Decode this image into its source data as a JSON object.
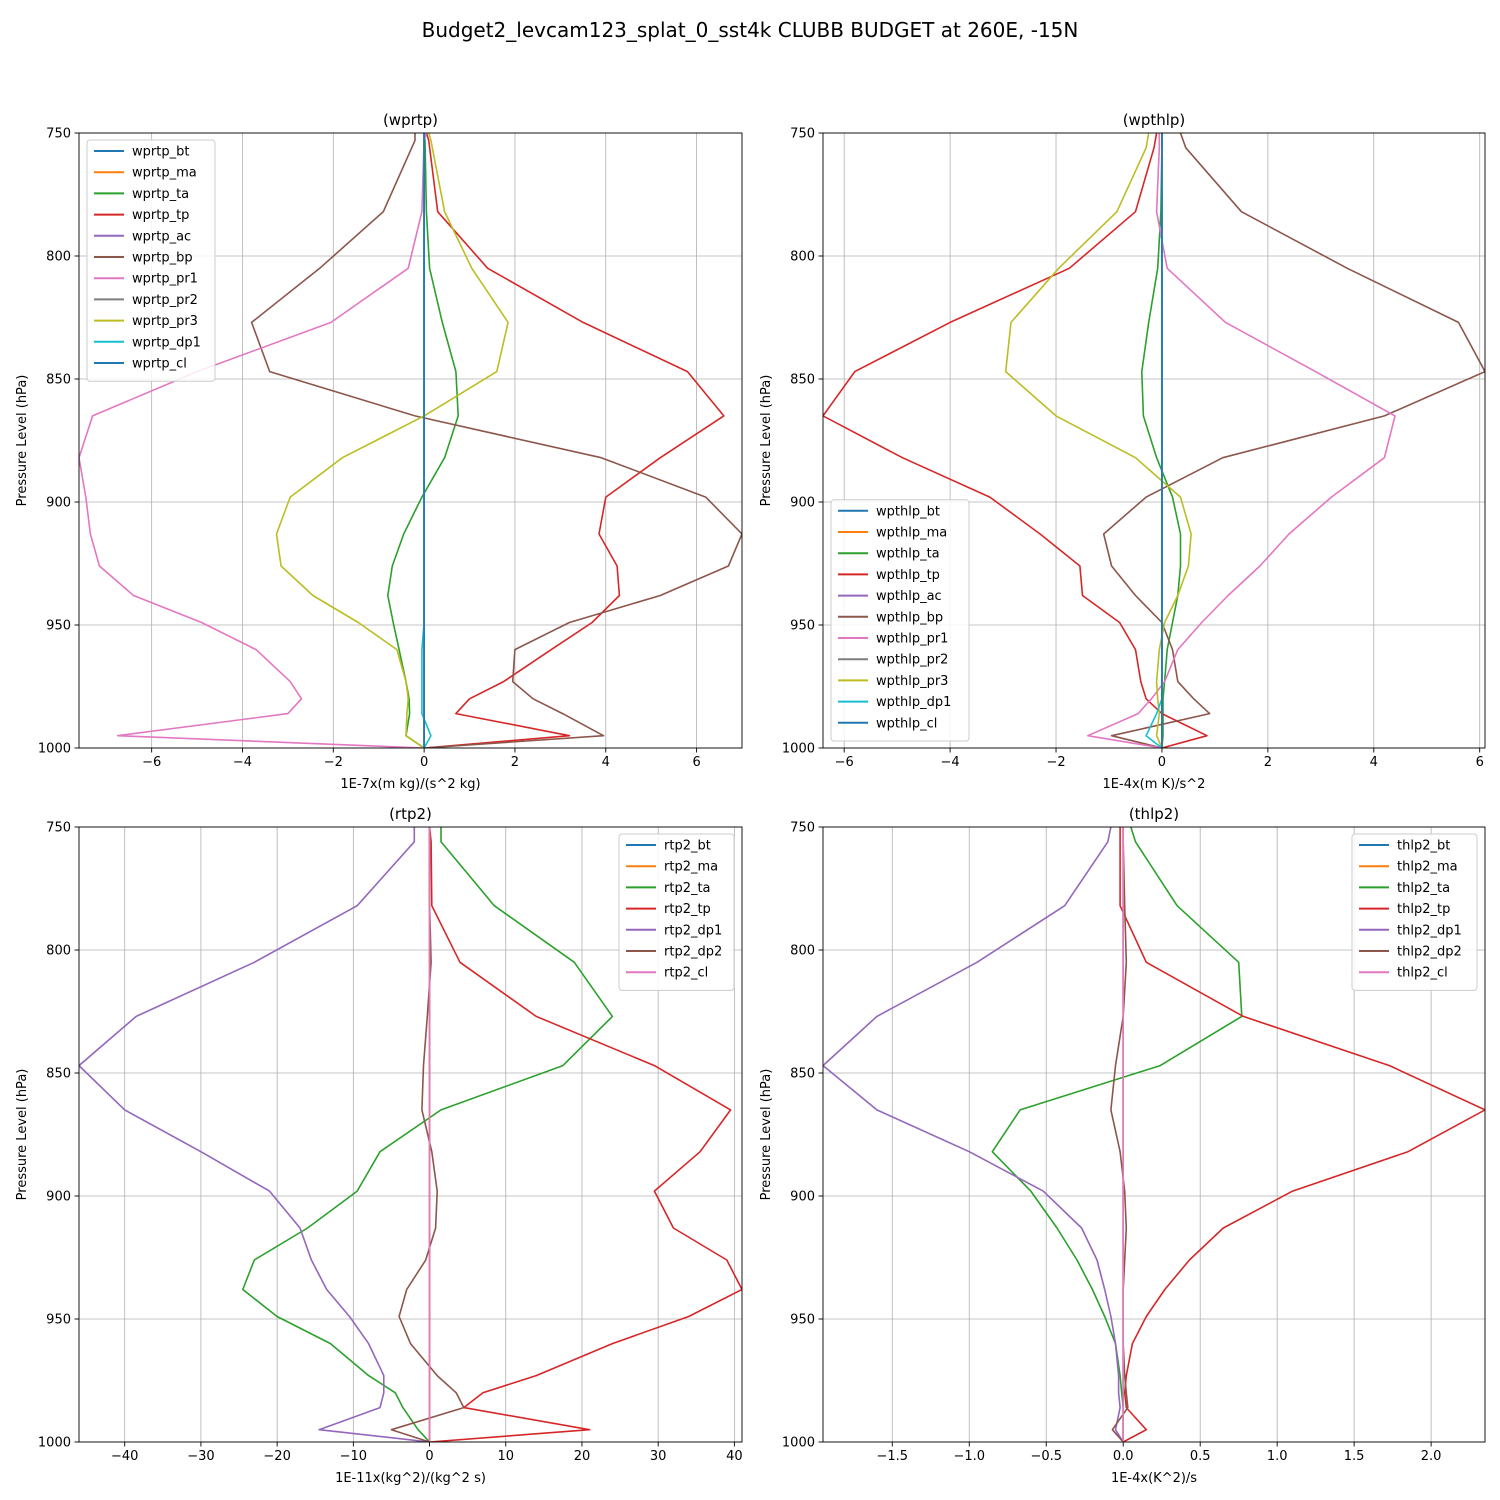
{
  "figure": {
    "title": "Budget2_levcam123_splat_0_sst4k CLUBB BUDGET at 260E, -15N"
  },
  "colors": {
    "C0": "#1f77b4",
    "C1": "#ff7f0e",
    "C2": "#2ca02c",
    "C3": "#d62728",
    "C4": "#9467bd",
    "C5": "#8c564b",
    "C6": "#e377c2",
    "C7": "#7f7f7f",
    "C8": "#bcbd22",
    "C9": "#17becf"
  },
  "chart_data": [
    {
      "type": "line",
      "title": "(wprtp)",
      "xlabel": "1E-7x(m kg)/(s^2 kg)",
      "ylabel": "Pressure Level (hPa)",
      "xlim": [
        -7.6,
        7.0
      ],
      "ylim": [
        1000,
        750
      ],
      "xticks": [
        -6,
        -4,
        -2,
        0,
        2,
        4,
        6
      ],
      "xtick_labels": [
        "−6",
        "−4",
        "−2",
        "0",
        "2",
        "4",
        "6"
      ],
      "yticks": [
        750,
        800,
        850,
        900,
        950,
        1000
      ],
      "ytick_labels": [
        "750",
        "800",
        "850",
        "900",
        "950",
        "1000"
      ],
      "grid": true,
      "legend_loc": "upper-left",
      "y": [
        750,
        753,
        782,
        805,
        827,
        847,
        865,
        882,
        898,
        913,
        926,
        938,
        949,
        960,
        973,
        980,
        986,
        995,
        1000
      ],
      "series": [
        {
          "name": "wprtp_bt",
          "color": "C0",
          "values": [
            0,
            0,
            0,
            0,
            0,
            0,
            0,
            0,
            0,
            0,
            0,
            0,
            0,
            0,
            0,
            0,
            0,
            0,
            0
          ]
        },
        {
          "name": "wprtp_ma",
          "color": "C1",
          "values": [
            0,
            0,
            0,
            0,
            0,
            0,
            0,
            0,
            0,
            0,
            0,
            0,
            0,
            0,
            0,
            0,
            0,
            0,
            0
          ]
        },
        {
          "name": "wprtp_ta",
          "color": "C2",
          "values": [
            0.0,
            0.02,
            0.05,
            0.12,
            0.4,
            0.7,
            0.75,
            0.45,
            -0.05,
            -0.45,
            -0.7,
            -0.8,
            -0.68,
            -0.55,
            -0.4,
            -0.33,
            -0.32,
            -0.4,
            0.0
          ]
        },
        {
          "name": "wprtp_tp",
          "color": "C3",
          "values": [
            0.05,
            0.1,
            0.3,
            1.4,
            3.5,
            5.8,
            6.6,
            5.2,
            4.0,
            3.85,
            4.25,
            4.3,
            3.7,
            2.8,
            1.75,
            1.0,
            0.7,
            3.2,
            0.0
          ]
        },
        {
          "name": "wprtp_ac",
          "color": "C4",
          "values": [
            0,
            0,
            0,
            0,
            0,
            0,
            0,
            0,
            0,
            0,
            0,
            0,
            0,
            0,
            0,
            0,
            0,
            0,
            0
          ]
        },
        {
          "name": "wprtp_bp",
          "color": "C5",
          "values": [
            -0.2,
            -0.2,
            -0.9,
            -2.3,
            -3.8,
            -3.4,
            -0.2,
            3.9,
            6.2,
            7.0,
            6.7,
            5.2,
            3.2,
            2.0,
            1.95,
            2.4,
            3.05,
            3.95,
            0.0
          ]
        },
        {
          "name": "wprtp_pr1",
          "color": "C6",
          "values": [
            0.05,
            0.0,
            -0.05,
            -0.35,
            -2.05,
            -5.0,
            -7.3,
            -7.6,
            -7.45,
            -7.35,
            -7.15,
            -6.4,
            -4.9,
            -3.7,
            -2.95,
            -2.7,
            -3.0,
            -6.75,
            0.0
          ]
        },
        {
          "name": "wprtp_pr2",
          "color": "C7",
          "values": [
            0,
            0,
            0,
            0,
            0,
            0,
            0,
            0,
            0,
            0,
            0,
            0,
            0,
            0,
            0,
            0,
            0,
            0,
            0
          ]
        },
        {
          "name": "wprtp_pr3",
          "color": "C8",
          "values": [
            0.1,
            0.15,
            0.45,
            1.05,
            1.85,
            1.6,
            0.0,
            -1.8,
            -2.95,
            -3.25,
            -3.15,
            -2.45,
            -1.45,
            -0.6,
            -0.4,
            -0.35,
            -0.38,
            -0.4,
            0.0
          ]
        },
        {
          "name": "wprtp_dp1",
          "color": "C9",
          "values": [
            0,
            0,
            0,
            0,
            0,
            0,
            0,
            0,
            0,
            0,
            0,
            0,
            0,
            -0.05,
            -0.05,
            -0.05,
            -0.05,
            0.15,
            0.0
          ]
        },
        {
          "name": "wprtp_cl",
          "color": "C0",
          "values": [
            0,
            0,
            0,
            0,
            0,
            0,
            0,
            0,
            0,
            0,
            0,
            0,
            0,
            0,
            0,
            0,
            0,
            0,
            0
          ]
        }
      ]
    },
    {
      "type": "line",
      "title": "(wpthlp)",
      "xlabel": "1E-4x(m K)/s^2",
      "ylabel": "Pressure Level (hPa)",
      "xlim": [
        -6.4,
        6.1
      ],
      "ylim": [
        1000,
        750
      ],
      "xticks": [
        -6,
        -4,
        -2,
        0,
        2,
        4,
        6
      ],
      "xtick_labels": [
        "−6",
        "−4",
        "−2",
        "0",
        "2",
        "4",
        "6"
      ],
      "yticks": [
        750,
        800,
        850,
        900,
        950,
        1000
      ],
      "ytick_labels": [
        "750",
        "800",
        "850",
        "900",
        "950",
        "1000"
      ],
      "grid": true,
      "legend_loc": "lower-left",
      "y": [
        750,
        756,
        782,
        805,
        827,
        847,
        865,
        882,
        898,
        913,
        926,
        938,
        949,
        960,
        973,
        980,
        986,
        995,
        1000
      ],
      "series": [
        {
          "name": "wpthlp_bt",
          "color": "C0",
          "values": [
            0,
            0,
            0,
            0,
            0,
            0,
            0,
            0,
            0,
            0,
            0,
            0,
            0,
            0,
            0,
            0,
            0,
            0,
            0
          ]
        },
        {
          "name": "wpthlp_ma",
          "color": "C1",
          "values": [
            0,
            0,
            0,
            0,
            0,
            0,
            0,
            0,
            0,
            0,
            0,
            0,
            0,
            0,
            0,
            0,
            0,
            0,
            0
          ]
        },
        {
          "name": "wpthlp_ta",
          "color": "C2",
          "values": [
            0.0,
            0.0,
            -0.02,
            -0.08,
            -0.25,
            -0.38,
            -0.35,
            -0.1,
            0.2,
            0.35,
            0.35,
            0.3,
            0.2,
            0.1,
            0.05,
            0.02,
            0.02,
            0.02,
            0.0
          ]
        },
        {
          "name": "wpthlp_tp",
          "color": "C3",
          "values": [
            -0.1,
            -0.15,
            -0.5,
            -1.75,
            -4.0,
            -5.8,
            -6.4,
            -4.9,
            -3.25,
            -2.3,
            -1.55,
            -1.5,
            -0.8,
            -0.5,
            -0.4,
            -0.3,
            0.0,
            0.85,
            0.0
          ]
        },
        {
          "name": "wpthlp_ac",
          "color": "C4",
          "values": [
            0,
            0,
            0,
            0,
            0,
            0,
            0,
            0,
            0,
            0,
            0,
            0,
            0,
            0,
            0,
            0,
            0,
            0,
            0
          ]
        },
        {
          "name": "wpthlp_bp",
          "color": "C5",
          "values": [
            0.35,
            0.45,
            1.5,
            3.5,
            5.6,
            6.1,
            4.2,
            1.15,
            -0.3,
            -1.1,
            -0.95,
            -0.5,
            0.0,
            0.2,
            0.3,
            0.6,
            0.9,
            -0.95,
            0.0
          ]
        },
        {
          "name": "wpthlp_pr1",
          "color": "C6",
          "values": [
            -0.05,
            -0.05,
            -0.1,
            0.1,
            1.2,
            2.9,
            4.4,
            4.2,
            3.2,
            2.4,
            1.85,
            1.25,
            0.75,
            0.3,
            0.05,
            -0.2,
            -0.45,
            -1.4,
            0.0
          ]
        },
        {
          "name": "wpthlp_pr2",
          "color": "C7",
          "values": [
            0,
            0,
            0,
            0,
            0,
            0,
            0,
            0,
            0,
            0,
            0,
            0,
            0,
            0,
            0,
            0,
            0,
            0,
            0
          ]
        },
        {
          "name": "wpthlp_pr3",
          "color": "C8",
          "values": [
            -0.25,
            -0.3,
            -0.85,
            -1.95,
            -2.85,
            -2.95,
            -2.0,
            -0.5,
            0.35,
            0.55,
            0.5,
            0.3,
            0.05,
            -0.05,
            -0.1,
            -0.08,
            -0.05,
            -0.1,
            0.0
          ]
        },
        {
          "name": "wpthlp_dp1",
          "color": "C9",
          "values": [
            0,
            0,
            0,
            0,
            0,
            0,
            0,
            0,
            0,
            0,
            0,
            0,
            0,
            0,
            0,
            0,
            -0.1,
            -0.3,
            0.0
          ]
        },
        {
          "name": "wpthlp_cl",
          "color": "C0",
          "values": [
            0,
            0,
            0,
            0,
            0,
            0,
            0,
            0,
            0,
            0,
            0,
            0,
            0,
            0,
            0,
            0,
            0,
            0,
            0
          ]
        }
      ]
    },
    {
      "type": "line",
      "title": "(rtp2)",
      "xlabel": "1E-11x(kg^2)/(kg^2 s)",
      "ylabel": "Pressure Level (hPa)",
      "xlim": [
        -46,
        41
      ],
      "ylim": [
        1000,
        750
      ],
      "xticks": [
        -40,
        -30,
        -20,
        -10,
        0,
        10,
        20,
        30,
        40
      ],
      "xtick_labels": [
        "−40",
        "−30",
        "−20",
        "−10",
        "0",
        "10",
        "20",
        "30",
        "40"
      ],
      "yticks": [
        750,
        800,
        850,
        900,
        950,
        1000
      ],
      "ytick_labels": [
        "750",
        "800",
        "850",
        "900",
        "950",
        "1000"
      ],
      "grid": true,
      "legend_loc": "upper-right",
      "y": [
        750,
        756,
        782,
        805,
        827,
        847,
        865,
        882,
        898,
        913,
        926,
        938,
        949,
        960,
        973,
        980,
        986,
        995,
        1000
      ],
      "series": [
        {
          "name": "rtp2_bt",
          "color": "C0",
          "values": [
            0,
            0,
            0,
            0,
            0,
            0,
            0,
            0,
            0,
            0,
            0,
            0,
            0,
            0,
            0,
            0,
            0,
            0,
            0
          ]
        },
        {
          "name": "rtp2_ma",
          "color": "C1",
          "values": [
            0,
            0,
            0,
            0,
            0,
            0,
            0,
            0,
            0,
            0,
            0,
            0,
            0,
            0,
            0,
            0,
            0,
            0,
            0
          ]
        },
        {
          "name": "rtp2_ta",
          "color": "C2",
          "values": [
            1.5,
            1.5,
            8.5,
            19.0,
            24.0,
            17.5,
            1.5,
            -6.5,
            -9.5,
            -16.0,
            -23.0,
            -24.5,
            -20.0,
            -13.0,
            -8.0,
            -4.5,
            -3.5,
            -1.5,
            0.0
          ]
        },
        {
          "name": "rtp2_tp",
          "color": "C3",
          "values": [
            0.0,
            0.2,
            0.3,
            4.0,
            14.0,
            29.5,
            39.5,
            35.5,
            29.5,
            32.0,
            39.0,
            41.0,
            34.0,
            24.0,
            14.0,
            7.0,
            4.5,
            21.0,
            0.0
          ]
        },
        {
          "name": "rtp2_dp1",
          "color": "C4",
          "values": [
            -2.0,
            -2.0,
            -9.5,
            -23.0,
            -38.5,
            -46.0,
            -40.0,
            -30.0,
            -21.0,
            -17.0,
            -15.5,
            -13.5,
            -10.5,
            -8.0,
            -6.0,
            -6.0,
            -6.5,
            -14.5,
            0.0
          ]
        },
        {
          "name": "rtp2_dp2",
          "color": "C5",
          "values": [
            0.0,
            0.0,
            0.0,
            0.2,
            -0.3,
            -0.8,
            -1.0,
            0.3,
            1.0,
            0.8,
            -0.5,
            -3.0,
            -4.0,
            -2.5,
            1.0,
            3.5,
            4.5,
            -5.0,
            0.0
          ]
        },
        {
          "name": "rtp2_cl",
          "color": "C6",
          "values": [
            0,
            0,
            0,
            0,
            0,
            0,
            0,
            0,
            0,
            0,
            0,
            0,
            0,
            0,
            0,
            0,
            0,
            0,
            0
          ]
        }
      ]
    },
    {
      "type": "line",
      "title": "(thlp2)",
      "xlabel": "1E-4x(K^2)/s",
      "ylabel": "Pressure Level (hPa)",
      "xlim": [
        -1.95,
        2.35
      ],
      "ylim": [
        1000,
        750
      ],
      "xticks": [
        -1.5,
        -1.0,
        -0.5,
        0.0,
        0.5,
        1.0,
        1.5,
        2.0
      ],
      "xtick_labels": [
        "−1.5",
        "−1.0",
        "−0.5",
        "0.0",
        "0.5",
        "1.0",
        "1.5",
        "2.0"
      ],
      "yticks": [
        750,
        800,
        850,
        900,
        950,
        1000
      ],
      "ytick_labels": [
        "750",
        "800",
        "850",
        "900",
        "950",
        "1000"
      ],
      "grid": true,
      "legend_loc": "upper-right",
      "y": [
        750,
        756,
        782,
        805,
        827,
        847,
        865,
        882,
        898,
        913,
        926,
        938,
        949,
        960,
        973,
        980,
        986,
        995,
        1000
      ],
      "series": [
        {
          "name": "thlp2_bt",
          "color": "C0",
          "values": [
            0,
            0,
            0,
            0,
            0,
            0,
            0,
            0,
            0,
            0,
            0,
            0,
            0,
            0,
            0,
            0,
            0,
            0,
            0
          ]
        },
        {
          "name": "thlp2_ma",
          "color": "C1",
          "values": [
            0,
            0,
            0,
            0,
            0,
            0,
            0,
            0,
            0,
            0,
            0,
            0,
            0,
            0,
            0,
            0,
            0,
            0,
            0
          ]
        },
        {
          "name": "thlp2_ta",
          "color": "C2",
          "values": [
            0.05,
            0.08,
            0.35,
            0.75,
            0.77,
            0.24,
            -0.67,
            -0.85,
            -0.6,
            -0.43,
            -0.3,
            -0.2,
            -0.12,
            -0.05,
            -0.02,
            -0.01,
            0.0,
            0.0,
            0.0
          ]
        },
        {
          "name": "thlp2_tp",
          "color": "C3",
          "values": [
            -0.02,
            -0.02,
            -0.02,
            0.15,
            0.78,
            1.73,
            2.35,
            1.85,
            1.1,
            0.65,
            0.43,
            0.27,
            0.15,
            0.06,
            0.02,
            0.01,
            0.02,
            0.15,
            0.0
          ]
        },
        {
          "name": "thlp2_dp1",
          "color": "C4",
          "values": [
            -0.08,
            -0.1,
            -0.38,
            -0.95,
            -1.6,
            -1.95,
            -1.6,
            -1.0,
            -0.52,
            -0.27,
            -0.17,
            -0.12,
            -0.08,
            -0.05,
            -0.03,
            -0.03,
            -0.02,
            -0.05,
            0.0
          ]
        },
        {
          "name": "thlp2_dp2",
          "color": "C5",
          "values": [
            0.0,
            0.0,
            0.01,
            0.02,
            0.0,
            -0.05,
            -0.08,
            -0.02,
            0.01,
            0.02,
            0.01,
            0.0,
            0.0,
            0.0,
            0.01,
            0.02,
            0.03,
            -0.07,
            0.0
          ]
        },
        {
          "name": "thlp2_cl",
          "color": "C6",
          "values": [
            0,
            0,
            0,
            0,
            0,
            0,
            0,
            0,
            0,
            0,
            0,
            0,
            0,
            0,
            0,
            0,
            0,
            0,
            0
          ]
        }
      ]
    }
  ]
}
